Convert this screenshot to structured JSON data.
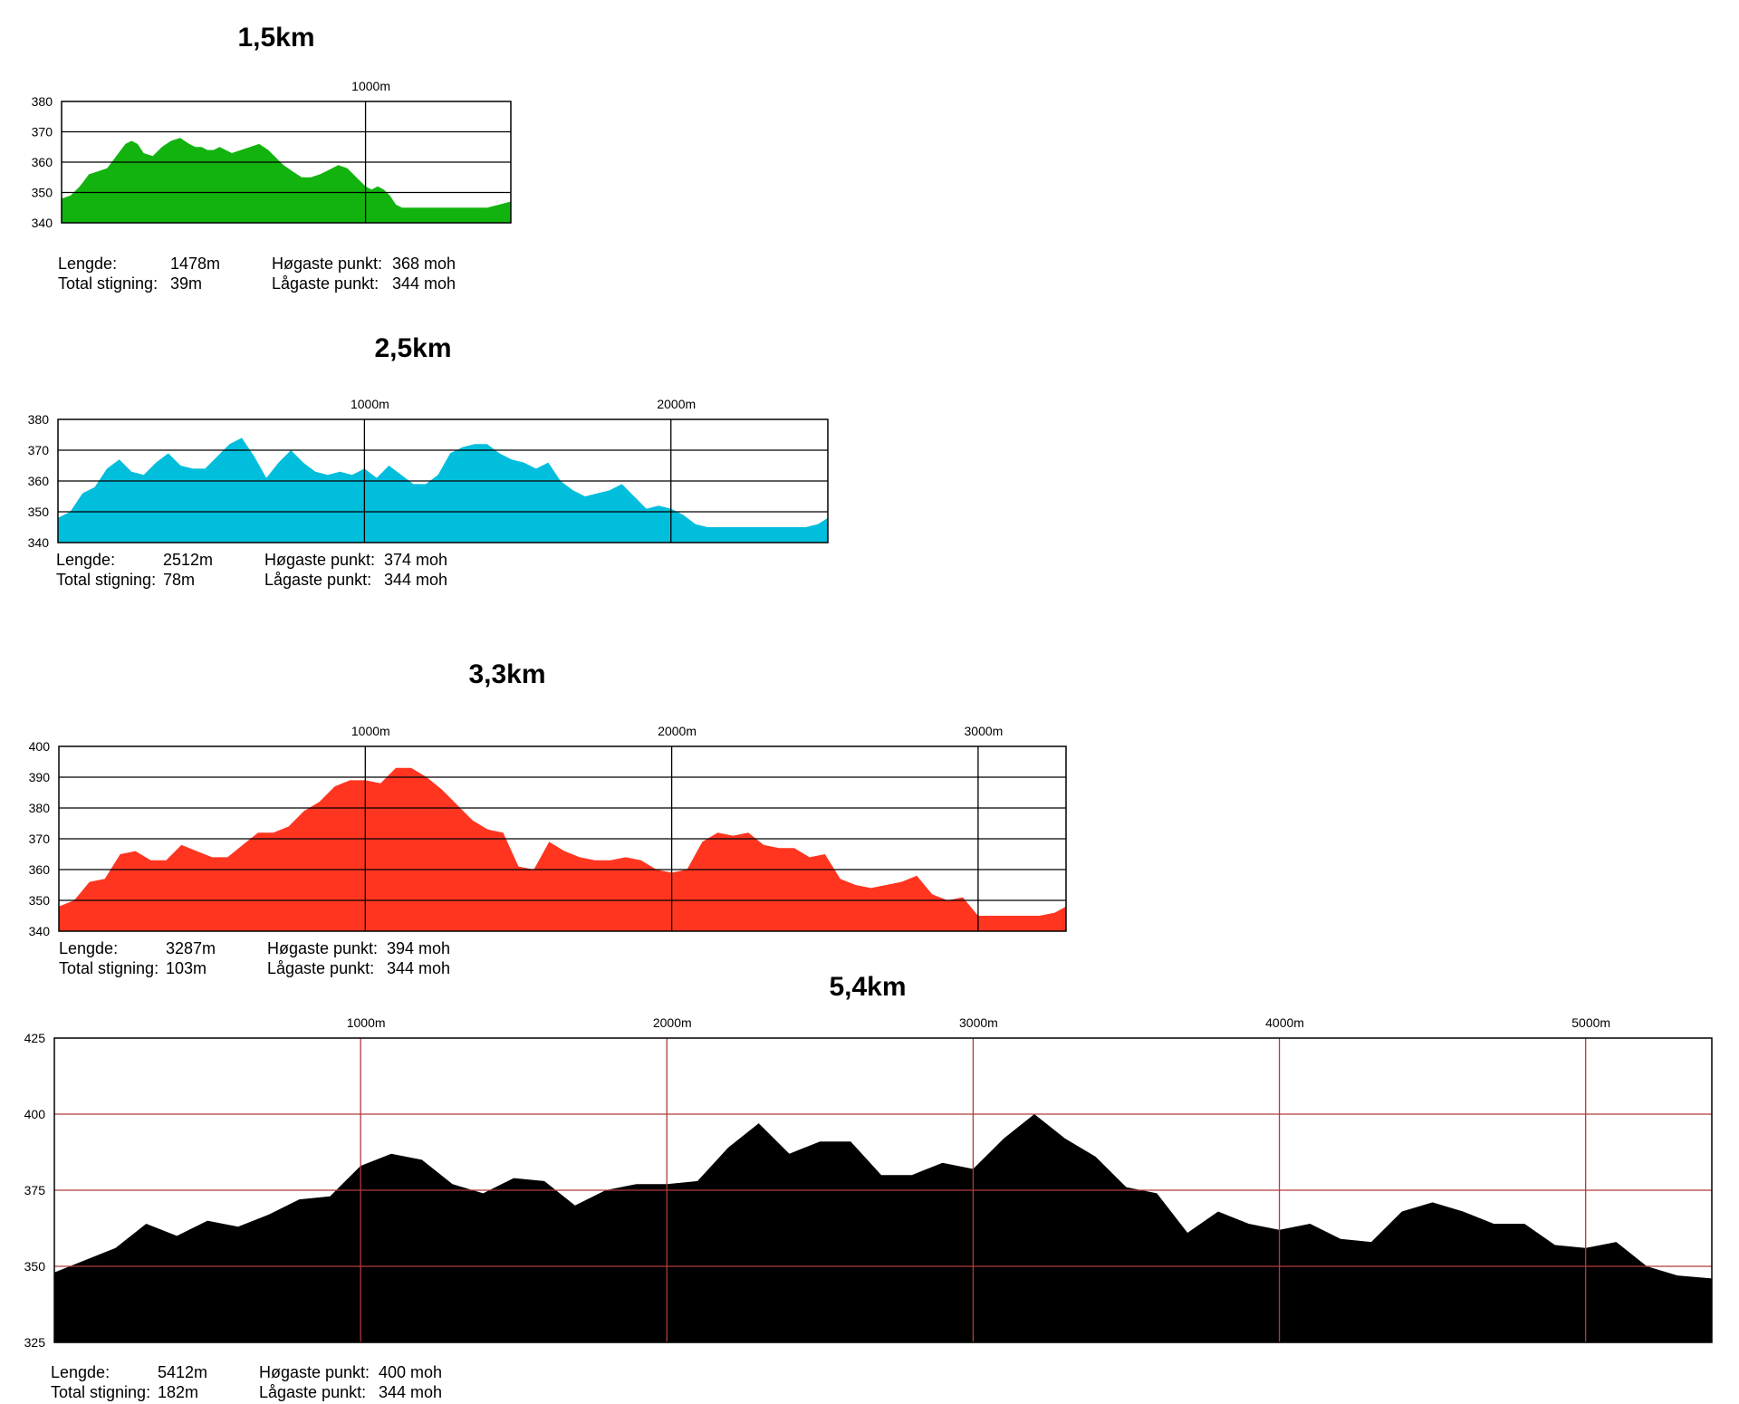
{
  "chart_data": [
    {
      "type": "area",
      "title": "1,5km",
      "color": "#12b30e",
      "grid_color": "#000000",
      "xlim": [
        0,
        1478
      ],
      "ylim": [
        340,
        380
      ],
      "yticks": [
        340,
        350,
        360,
        370,
        380
      ],
      "xgrid": [
        1000
      ],
      "xtick_labels": [
        "1000m"
      ],
      "x": [
        0,
        30,
        60,
        90,
        120,
        150,
        180,
        210,
        230,
        250,
        270,
        300,
        330,
        360,
        390,
        420,
        440,
        460,
        480,
        500,
        520,
        540,
        560,
        590,
        620,
        650,
        680,
        700,
        730,
        760,
        790,
        820,
        850,
        870,
        890,
        910,
        940,
        970,
        1000,
        1020,
        1040,
        1060,
        1080,
        1100,
        1120,
        1140,
        1160,
        1180,
        1210,
        1240,
        1280,
        1320,
        1360,
        1400,
        1440,
        1478
      ],
      "values": [
        348,
        349,
        352,
        356,
        357,
        358,
        362,
        366,
        367,
        366,
        363,
        362,
        365,
        367,
        368,
        366,
        365,
        365,
        364,
        364,
        365,
        364,
        363,
        364,
        365,
        366,
        364,
        362,
        359,
        357,
        355,
        355,
        356,
        357,
        358,
        359,
        358,
        355,
        352,
        351,
        352,
        351,
        349,
        346,
        345,
        345,
        345,
        345,
        345,
        345,
        345,
        345,
        345,
        345,
        346,
        347
      ],
      "stats": {
        "length_label": "Lengde:",
        "length_value": "1478m",
        "climb_label": "Total stigning:",
        "climb_value": "39m",
        "high_label": "Høgaste punkt:",
        "high_value": "368 moh",
        "low_label": "Lågaste punkt:",
        "low_value": "344 moh"
      }
    },
    {
      "type": "area",
      "title": "2,5km",
      "color": "#00bedc",
      "grid_color": "#000000",
      "xlim": [
        0,
        2512
      ],
      "ylim": [
        340,
        380
      ],
      "yticks": [
        340,
        350,
        360,
        370,
        380
      ],
      "xgrid": [
        1000,
        2000
      ],
      "xtick_labels": [
        "1000m",
        "2000m"
      ],
      "x": [
        0,
        40,
        80,
        120,
        160,
        200,
        240,
        280,
        320,
        360,
        400,
        440,
        480,
        520,
        560,
        600,
        640,
        680,
        720,
        760,
        800,
        840,
        880,
        920,
        960,
        1000,
        1040,
        1080,
        1120,
        1160,
        1200,
        1240,
        1280,
        1320,
        1360,
        1400,
        1440,
        1480,
        1520,
        1560,
        1600,
        1640,
        1680,
        1720,
        1760,
        1800,
        1840,
        1880,
        1920,
        1960,
        2000,
        2040,
        2080,
        2120,
        2160,
        2200,
        2240,
        2280,
        2320,
        2360,
        2400,
        2440,
        2480,
        2512
      ],
      "values": [
        348,
        350,
        356,
        358,
        364,
        367,
        363,
        362,
        366,
        369,
        365,
        364,
        364,
        368,
        372,
        374,
        368,
        361,
        366,
        370,
        366,
        363,
        362,
        363,
        362,
        364,
        361,
        365,
        362,
        359,
        359,
        362,
        369,
        371,
        372,
        372,
        369,
        367,
        366,
        364,
        366,
        360,
        357,
        355,
        356,
        357,
        359,
        355,
        351,
        352,
        351,
        349,
        346,
        345,
        345,
        345,
        345,
        345,
        345,
        345,
        345,
        345,
        346,
        348
      ],
      "stats": {
        "length_label": "Lengde:",
        "length_value": "2512m",
        "climb_label": "Total stigning:",
        "climb_value": "78m",
        "high_label": "Høgaste punkt:",
        "high_value": "374 moh",
        "low_label": "Lågaste punkt:",
        "low_value": "344 moh"
      }
    },
    {
      "type": "area",
      "title": "3,3km",
      "color": "#ff3520",
      "grid_color": "#000000",
      "xlim": [
        0,
        3287
      ],
      "ylim": [
        340,
        400
      ],
      "yticks": [
        340,
        350,
        360,
        370,
        380,
        390,
        400
      ],
      "xgrid": [
        1000,
        2000,
        3000
      ],
      "xtick_labels": [
        "1000m",
        "2000m",
        "3000m"
      ],
      "x": [
        0,
        50,
        100,
        150,
        200,
        250,
        300,
        350,
        400,
        450,
        500,
        550,
        600,
        650,
        700,
        750,
        800,
        850,
        900,
        950,
        1000,
        1050,
        1100,
        1150,
        1200,
        1250,
        1300,
        1350,
        1400,
        1450,
        1500,
        1550,
        1600,
        1650,
        1700,
        1750,
        1800,
        1850,
        1900,
        1950,
        2000,
        2050,
        2100,
        2150,
        2200,
        2250,
        2300,
        2350,
        2400,
        2450,
        2500,
        2550,
        2600,
        2650,
        2700,
        2750,
        2800,
        2850,
        2900,
        2950,
        3000,
        3050,
        3100,
        3150,
        3200,
        3250,
        3287
      ],
      "values": [
        348,
        350,
        356,
        357,
        365,
        366,
        363,
        363,
        368,
        366,
        364,
        364,
        368,
        372,
        372,
        374,
        379,
        382,
        387,
        389,
        389,
        388,
        393,
        393,
        390,
        386,
        381,
        376,
        373,
        372,
        361,
        360,
        369,
        366,
        364,
        363,
        363,
        364,
        363,
        360,
        359,
        360,
        369,
        372,
        371,
        372,
        368,
        367,
        367,
        364,
        365,
        357,
        355,
        354,
        355,
        356,
        358,
        352,
        350,
        351,
        345,
        345,
        345,
        345,
        345,
        346,
        348
      ],
      "stats": {
        "length_label": "Lengde:",
        "length_value": "3287m",
        "climb_label": "Total stigning:",
        "climb_value": "103m",
        "high_label": "Høgaste punkt:",
        "high_value": "394 moh",
        "low_label": "Lågaste punkt:",
        "low_value": "344 moh"
      }
    },
    {
      "type": "area",
      "title": "5,4km",
      "color": "#000000",
      "grid_color": "#b23a3a",
      "xlim": [
        0,
        5412
      ],
      "ylim": [
        325,
        425
      ],
      "yticks": [
        325,
        350,
        375,
        400,
        425
      ],
      "xgrid": [
        1000,
        2000,
        3000,
        4000,
        5000
      ],
      "xtick_labels": [
        "1000m",
        "2000m",
        "3000m",
        "4000m",
        "5000m"
      ],
      "x": [
        0,
        100,
        200,
        300,
        400,
        500,
        600,
        700,
        800,
        900,
        1000,
        1100,
        1200,
        1300,
        1400,
        1500,
        1600,
        1700,
        1800,
        1900,
        2000,
        2100,
        2200,
        2300,
        2400,
        2500,
        2600,
        2700,
        2800,
        2900,
        3000,
        3100,
        3200,
        3300,
        3400,
        3500,
        3600,
        3700,
        3800,
        3900,
        4000,
        4100,
        4200,
        4300,
        4400,
        4500,
        4600,
        4700,
        4800,
        4900,
        5000,
        5100,
        5200,
        5300,
        5412
      ],
      "values": [
        348,
        352,
        356,
        364,
        360,
        365,
        363,
        367,
        372,
        373,
        383,
        387,
        385,
        377,
        374,
        379,
        378,
        370,
        375,
        377,
        377,
        378,
        389,
        397,
        387,
        391,
        391,
        380,
        380,
        384,
        382,
        392,
        400,
        392,
        386,
        376,
        374,
        361,
        368,
        364,
        362,
        364,
        359,
        358,
        368,
        371,
        368,
        364,
        364,
        357,
        356,
        358,
        350,
        347,
        346
      ],
      "stats": {
        "length_label": "Lengde:",
        "length_value": "5412m",
        "climb_label": "Total stigning:",
        "climb_value": "182m",
        "high_label": "Høgaste punkt:",
        "high_value": "400 moh",
        "low_label": "Lågaste punkt:",
        "low_value": "344 moh"
      }
    }
  ]
}
